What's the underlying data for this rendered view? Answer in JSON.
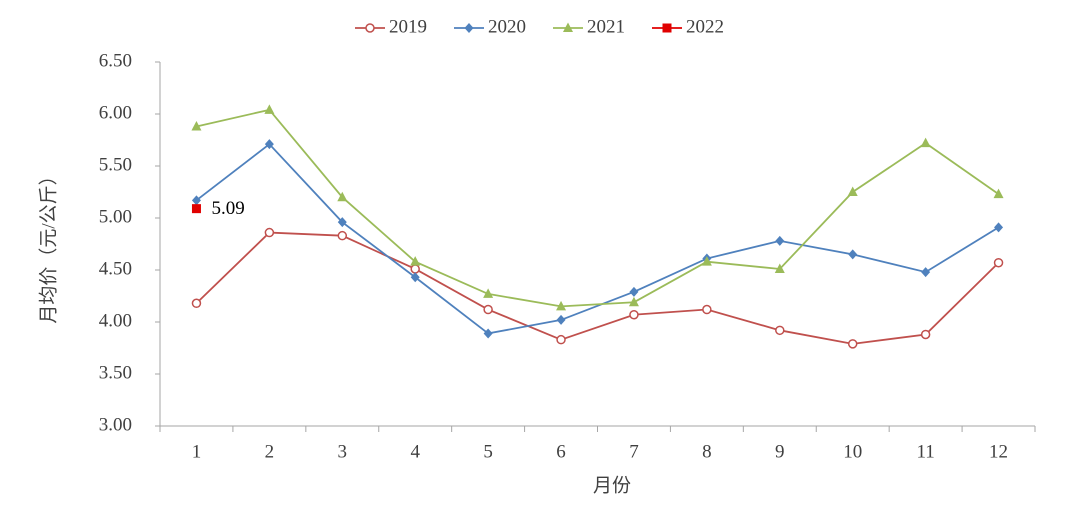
{
  "chart_data": {
    "type": "line",
    "x_label": "月份",
    "y_label": "月均价（元/公斤）",
    "categories": [
      "1",
      "2",
      "3",
      "4",
      "5",
      "6",
      "7",
      "8",
      "9",
      "10",
      "11",
      "12"
    ],
    "series": [
      {
        "name": "2019",
        "color": "#c0504d",
        "marker": "circle",
        "values": [
          4.18,
          4.86,
          4.83,
          4.51,
          4.12,
          3.83,
          4.07,
          4.12,
          3.92,
          3.79,
          3.88,
          4.57
        ]
      },
      {
        "name": "2020",
        "color": "#4f81bd",
        "marker": "diamond",
        "values": [
          5.17,
          5.71,
          4.96,
          4.43,
          3.89,
          4.02,
          4.29,
          4.61,
          4.78,
          4.65,
          4.48,
          4.91
        ]
      },
      {
        "name": "2021",
        "color": "#9bbb59",
        "marker": "triangle",
        "values": [
          5.88,
          6.04,
          5.2,
          4.58,
          4.27,
          4.15,
          4.19,
          4.58,
          4.51,
          5.25,
          5.72,
          5.23
        ]
      },
      {
        "name": "2022",
        "color": "#e00000",
        "marker": "square",
        "values": [
          5.09,
          null,
          null,
          null,
          null,
          null,
          null,
          null,
          null,
          null,
          null,
          null
        ],
        "data_label_index": 0
      }
    ],
    "ylim": [
      3,
      6.5
    ],
    "yticks": [
      {
        "value": 3,
        "label": "3.00"
      },
      {
        "value": 3.5,
        "label": "3.50"
      },
      {
        "value": 4,
        "label": "4.00"
      },
      {
        "value": 4.5,
        "label": "4.50"
      },
      {
        "value": 5,
        "label": "5.00"
      },
      {
        "value": 5.5,
        "label": "5.50"
      },
      {
        "value": 6,
        "label": "6.00"
      },
      {
        "value": 6.5,
        "label": "6.50"
      }
    ],
    "grid": false,
    "legend": "top"
  }
}
